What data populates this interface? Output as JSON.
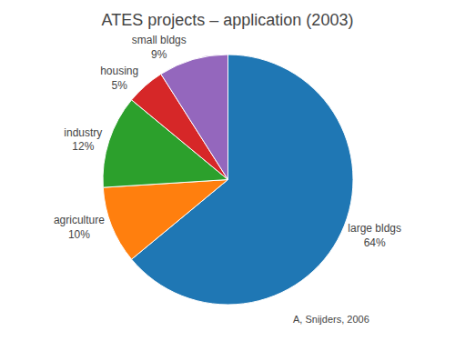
{
  "chart_data": {
    "type": "pie",
    "title": "ATES projects – application (2003)",
    "categories": [
      "large bldgs",
      "agriculture",
      "industry",
      "housing",
      "small bldgs"
    ],
    "values": [
      64,
      10,
      12,
      5,
      9
    ],
    "value_labels": [
      "64%",
      "10%",
      "12%",
      "5%",
      "9%"
    ],
    "data_labels": true,
    "legend": false,
    "annotations": [
      "A, Snijders, 2006"
    ]
  }
}
